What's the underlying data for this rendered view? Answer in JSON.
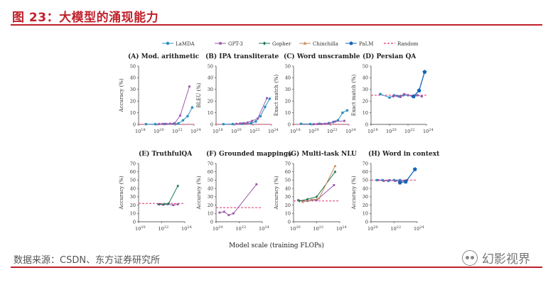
{
  "header": {
    "title": "图 23：大模型的涌现能力"
  },
  "footer": {
    "source": "数据来源：CSDN、东方证券研究所",
    "watermark": "幻影视界"
  },
  "colors": {
    "LaMDA": "#2a8fc4",
    "GPT-3": "#9b59a8",
    "Gopher": "#1e7a52",
    "Chinchilla": "#c98b5a",
    "PaLM": "#1565b8",
    "Random": "#e0336e",
    "brand": "#c0212b"
  },
  "chart_data": {
    "type": "line",
    "shared_xlabel": "Model scale (training FLOPs)",
    "legend": {
      "placement": "top",
      "entries": [
        {
          "name": "LaMDA",
          "marker": "dot"
        },
        {
          "name": "GPT-3",
          "marker": "square"
        },
        {
          "name": "Gopher",
          "marker": "diamond"
        },
        {
          "name": "Chinchilla",
          "marker": "triangle"
        },
        {
          "name": "PaLM",
          "marker": "pentagon"
        },
        {
          "name": "Random",
          "marker": "dashed"
        }
      ]
    },
    "panels": [
      {
        "id": "A",
        "title": "(A) Mod. arithmetic",
        "ylabel": "Accuracy (%)",
        "ylim": [
          0,
          50
        ],
        "yticks": [
          0,
          10,
          20,
          30,
          40,
          50
        ],
        "xlog_range": [
          18,
          24
        ],
        "xticks": [
          18,
          20,
          22,
          24
        ],
        "random": 0,
        "series": [
          {
            "name": "LaMDA",
            "points": [
              [
                18.8,
                0.2
              ],
              [
                19.8,
                0.2
              ],
              [
                20.8,
                0.3
              ],
              [
                21.8,
                0.5
              ],
              [
                22.3,
                0.8
              ],
              [
                22.8,
                3.5
              ],
              [
                23.3,
                7
              ],
              [
                23.8,
                14.5
              ]
            ]
          },
          {
            "name": "GPT-3",
            "points": [
              [
                20.2,
                0.3
              ],
              [
                20.6,
                0.4
              ],
              [
                21.0,
                0.4
              ],
              [
                21.4,
                0.6
              ],
              [
                21.9,
                1.0
              ],
              [
                22.5,
                7.5
              ],
              [
                23.5,
                32.5
              ]
            ]
          }
        ]
      },
      {
        "id": "B",
        "title": "(B) IPA transliterate",
        "ylabel": "BLEU (%)",
        "ylim": [
          0,
          50
        ],
        "yticks": [
          0,
          10,
          20,
          30,
          40,
          50
        ],
        "xlog_range": [
          18,
          24
        ],
        "xticks": [
          18,
          20,
          22,
          24
        ],
        "random": 0,
        "series": [
          {
            "name": "LaMDA",
            "points": [
              [
                18.8,
                0.2
              ],
              [
                19.8,
                0.3
              ],
              [
                20.8,
                0.5
              ],
              [
                21.8,
                1.0
              ],
              [
                22.3,
                2.5
              ],
              [
                22.8,
                7
              ],
              [
                23.3,
                15
              ],
              [
                23.8,
                22
              ]
            ]
          },
          {
            "name": "GPT-3",
            "points": [
              [
                20.2,
                0.5
              ],
              [
                20.6,
                0.8
              ],
              [
                21.0,
                1.0
              ],
              [
                21.4,
                1.5
              ],
              [
                21.9,
                3
              ],
              [
                22.5,
                5
              ],
              [
                23.5,
                22.5
              ]
            ]
          }
        ]
      },
      {
        "id": "C",
        "title": "(C) Word unscramble",
        "ylabel": "Exact match (%)",
        "ylim": [
          0,
          50
        ],
        "yticks": [
          0,
          10,
          20,
          30,
          40,
          50
        ],
        "xlog_range": [
          18,
          24
        ],
        "xticks": [
          18,
          20,
          22,
          24
        ],
        "random": 0,
        "series": [
          {
            "name": "LaMDA",
            "points": [
              [
                18.8,
                0.5
              ],
              [
                19.8,
                0.3
              ],
              [
                20.8,
                0.5
              ],
              [
                21.8,
                1.0
              ],
              [
                22.3,
                2.0
              ],
              [
                22.8,
                3.5
              ],
              [
                23.3,
                10
              ],
              [
                23.8,
                12
              ]
            ]
          },
          {
            "name": "GPT-3",
            "points": [
              [
                20.2,
                0.2
              ],
              [
                20.6,
                0.3
              ],
              [
                21.0,
                0.3
              ],
              [
                21.4,
                0.5
              ],
              [
                21.9,
                1.0
              ],
              [
                22.5,
                2.5
              ],
              [
                23.5,
                3
              ]
            ]
          }
        ]
      },
      {
        "id": "D",
        "title": "(D) Persian QA",
        "ylabel": "Exact match (%)",
        "ylim": [
          0,
          50
        ],
        "yticks": [
          0,
          10,
          20,
          30,
          40,
          50
        ],
        "xlog_range": [
          18,
          24
        ],
        "xticks": [
          18,
          20,
          22,
          24
        ],
        "random": 25,
        "series": [
          {
            "name": "LaMDA",
            "points": [
              [
                19.0,
                26
              ],
              [
                20.0,
                23
              ],
              [
                20.5,
                25
              ],
              [
                21.0,
                24
              ],
              [
                21.5,
                25
              ],
              [
                22.0,
                25
              ],
              [
                22.5,
                24
              ],
              [
                23.0,
                25
              ]
            ]
          },
          {
            "name": "GPT-3",
            "points": [
              [
                20.4,
                24
              ],
              [
                20.8,
                24.5
              ],
              [
                21.2,
                23.5
              ],
              [
                21.6,
                26
              ],
              [
                22.0,
                25
              ],
              [
                22.5,
                24
              ],
              [
                23.0,
                25
              ],
              [
                23.5,
                24
              ]
            ]
          },
          {
            "name": "PaLM",
            "points": [
              [
                22.6,
                24
              ],
              [
                23.2,
                29
              ],
              [
                23.8,
                45
              ]
            ]
          }
        ]
      },
      {
        "id": "E",
        "title": "(E) TruthfulQA",
        "ylabel": "Accuracy (%)",
        "ylim": [
          0,
          70
        ],
        "yticks": [
          0,
          10,
          20,
          30,
          40,
          50,
          60,
          70
        ],
        "xlog_range": [
          20,
          24
        ],
        "xticks": [
          20,
          22,
          24
        ],
        "random": 22,
        "series": [
          {
            "name": "GPT-3",
            "points": [
              [
                21.7,
                21
              ],
              [
                22.1,
                20.5
              ],
              [
                22.5,
                21
              ],
              [
                23.0,
                20
              ],
              [
                23.4,
                21
              ]
            ]
          },
          {
            "name": "Gopher",
            "points": [
              [
                21.8,
                21
              ],
              [
                22.2,
                21
              ],
              [
                22.6,
                22
              ],
              [
                23.4,
                43
              ]
            ]
          }
        ]
      },
      {
        "id": "F",
        "title": "(F) Grounded mappings",
        "ylabel": "Accuracy (%)",
        "ylim": [
          0,
          70
        ],
        "yticks": [
          0,
          10,
          20,
          30,
          40,
          50,
          60,
          70
        ],
        "xlog_range": [
          20,
          24
        ],
        "xticks": [
          20,
          22,
          24
        ],
        "random": 17,
        "series": [
          {
            "name": "GPT-3",
            "points": [
              [
                20.3,
                11
              ],
              [
                20.7,
                12
              ],
              [
                21.1,
                8
              ],
              [
                21.5,
                10
              ],
              [
                23.5,
                45
              ]
            ]
          }
        ]
      },
      {
        "id": "G",
        "title": "(G) Multi-task NLU",
        "ylabel": "Accuracy (%)",
        "ylim": [
          0,
          70
        ],
        "yticks": [
          0,
          10,
          20,
          30,
          40,
          50,
          60,
          70
        ],
        "xlog_range": [
          20,
          24
        ],
        "xticks": [
          20,
          22,
          24
        ],
        "random": 25,
        "series": [
          {
            "name": "GPT-3",
            "points": [
              [
                20.4,
                26
              ],
              [
                20.8,
                25
              ],
              [
                21.2,
                25
              ],
              [
                21.6,
                26
              ],
              [
                22.0,
                26
              ],
              [
                23.5,
                44
              ]
            ]
          },
          {
            "name": "Gopher",
            "points": [
              [
                20.5,
                25
              ],
              [
                21.2,
                27
              ],
              [
                22.0,
                30
              ],
              [
                23.6,
                60
              ]
            ]
          },
          {
            "name": "Chinchilla",
            "points": [
              [
                20.8,
                24
              ],
              [
                21.5,
                26
              ],
              [
                22.2,
                28
              ],
              [
                23.6,
                67
              ]
            ]
          }
        ]
      },
      {
        "id": "H",
        "title": "(H) Word in context",
        "ylabel": "Accuracy (%)",
        "ylim": [
          0,
          70
        ],
        "yticks": [
          0,
          10,
          20,
          30,
          40,
          50,
          60,
          70
        ],
        "xlog_range": [
          20,
          24
        ],
        "xticks": [
          20,
          22,
          24
        ],
        "random": 50,
        "series": [
          {
            "name": "LaMDA",
            "points": [
              [
                20.5,
                50
              ],
              [
                21.0,
                50
              ],
              [
                21.5,
                49
              ],
              [
                22.0,
                50
              ],
              [
                22.5,
                50
              ],
              [
                23.0,
                49
              ]
            ]
          },
          {
            "name": "GPT-3",
            "points": [
              [
                20.6,
                50
              ],
              [
                21.1,
                49
              ],
              [
                21.6,
                50
              ],
              [
                22.1,
                49
              ],
              [
                22.6,
                49
              ],
              [
                23.1,
                50
              ]
            ]
          },
          {
            "name": "PaLM",
            "points": [
              [
                22.5,
                47
              ],
              [
                23.0,
                48
              ],
              [
                23.8,
                63
              ]
            ]
          }
        ]
      }
    ]
  }
}
